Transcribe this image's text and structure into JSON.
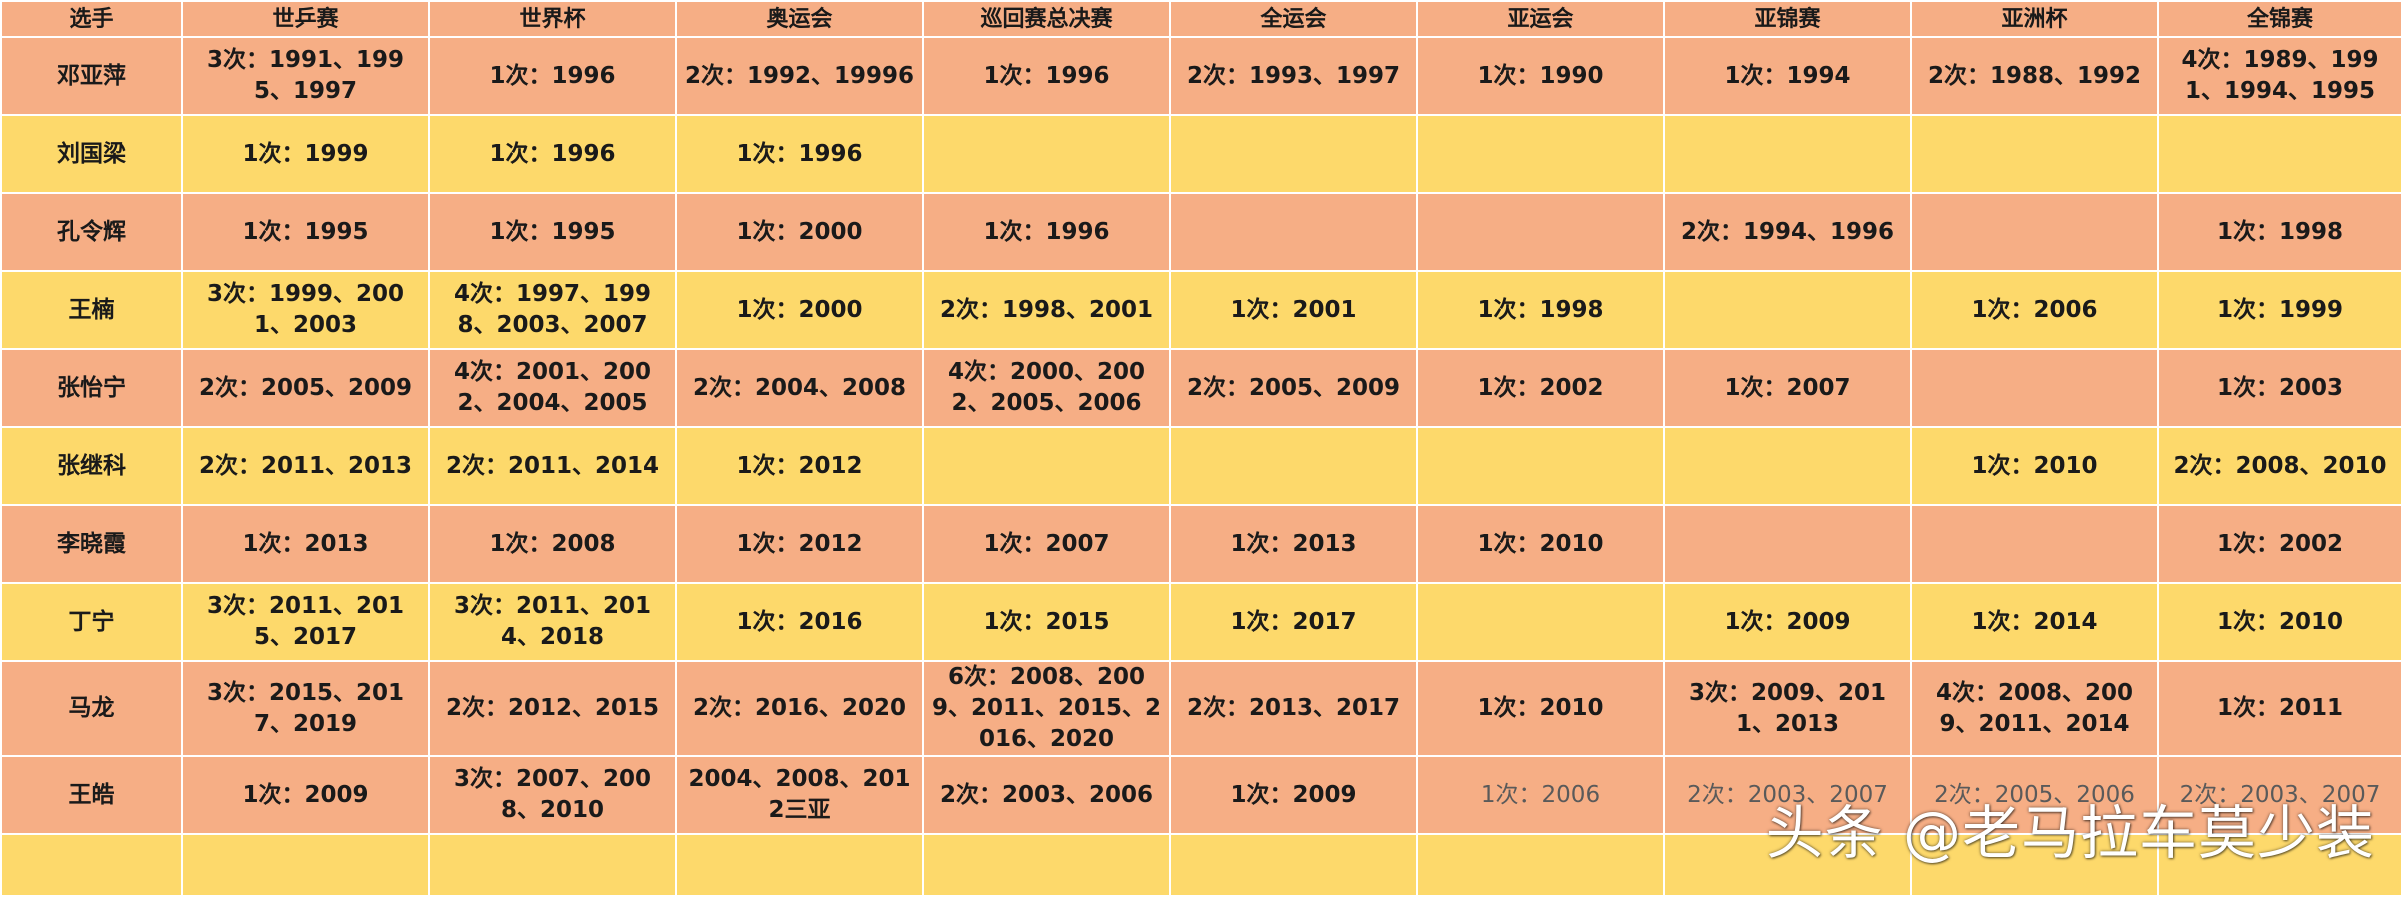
{
  "table": {
    "headers": [
      "选手",
      "世乒赛",
      "世界杯",
      "奥运会",
      "巡回赛总决赛",
      "全运会",
      "亚运会",
      "亚锦赛",
      "亚洲杯",
      "全锦赛"
    ],
    "rows": [
      [
        "邓亚萍",
        "3次：1991、1995、1997",
        "1次：1996",
        "2次：1992、19996",
        "1次：1996",
        "2次：1993、1997",
        "1次：1990",
        "1次：1994",
        "2次：1988、1992",
        "4次：1989、1991、1994、1995"
      ],
      [
        "刘国梁",
        "1次：1999",
        "1次：1996",
        "1次：1996",
        "",
        "",
        "",
        "",
        "",
        ""
      ],
      [
        "孔令辉",
        "1次：1995",
        "1次：1995",
        "1次：2000",
        "1次：1996",
        "",
        "",
        "2次：1994、1996",
        "",
        "1次：1998"
      ],
      [
        "王楠",
        "3次：1999、2001、2003",
        "4次：1997、1998、2003、2007",
        "1次：2000",
        "2次：1998、2001",
        "1次：2001",
        "1次：1998",
        "",
        "1次：2006",
        "1次：1999"
      ],
      [
        "张怡宁",
        "2次：2005、2009",
        "4次：2001、2002、2004、2005",
        "2次：2004、2008",
        "4次：2000、2002、2005、2006",
        "2次：2005、2009",
        "1次：2002",
        "1次：2007",
        "",
        "1次：2003"
      ],
      [
        "张继科",
        "2次：2011、2013",
        "2次：2011、2014",
        "1次：2012",
        "",
        "",
        "",
        "",
        "1次：2010",
        "2次：2008、2010"
      ],
      [
        "李晓霞",
        "1次：2013",
        "1次：2008",
        "1次：2012",
        "1次：2007",
        "1次：2013",
        "1次：2010",
        "",
        "",
        "1次：2002"
      ],
      [
        "丁宁",
        "3次：2011、2015、2017",
        "3次：2011、2014、2018",
        "1次：2016",
        "1次：2015",
        "1次：2017",
        "",
        "1次：2009",
        "1次：2014",
        "1次：2010"
      ],
      [
        "马龙",
        "3次：2015、2017、2019",
        "2次：2012、2015",
        "2次：2016、2020",
        "6次：2008、2009、2011、2015、2016、2020",
        "2次：2013、2017",
        "1次：2010",
        "3次：2009、2011、2013",
        "4次：2008、2009、2011、2014",
        "1次：2011"
      ],
      [
        "王皓",
        "1次：2009",
        "3次：2007、2008、2010",
        "2004、2008、2012三亚",
        "2次：2003、2006",
        "1次：2009",
        "1次：2006",
        "2次：2003、2007",
        "2次：2005、2006",
        "2次：2003、2007"
      ],
      [
        "",
        "",
        "",
        "",
        "",
        "",
        "",
        "",
        "",
        ""
      ]
    ]
  },
  "watermark": "头条 @老马拉车莫少装"
}
